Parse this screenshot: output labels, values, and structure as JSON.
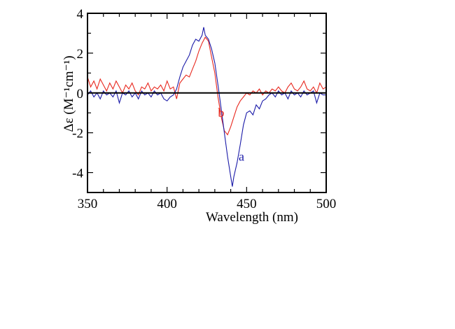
{
  "chart_data": {
    "type": "line",
    "title": "",
    "xlabel": "Wavelength (nm)",
    "ylabel": "Δε (M⁻¹cm⁻¹)",
    "ylabel_parts": {
      "base": "Δε (M",
      "sup1": "-1",
      "mid": "cm",
      "sup2": "-1",
      "end": ")"
    },
    "xlim": [
      350,
      500
    ],
    "ylim": [
      -5,
      4
    ],
    "xticks": [
      350,
      400,
      450,
      500
    ],
    "xtick_labels": [
      "350",
      "400",
      "450",
      "500"
    ],
    "yticks": [
      -4,
      -2,
      0,
      2,
      4
    ],
    "ytick_labels": [
      "-4",
      "-2",
      "0",
      "2",
      "4"
    ],
    "grid": false,
    "zero_line": true,
    "series": [
      {
        "name": "a",
        "color": "#1a1aa8",
        "label_pos": [
          445,
          -3.4
        ],
        "x": [
          350,
          352,
          354,
          356,
          358,
          360,
          362,
          364,
          366,
          368,
          370,
          372,
          374,
          376,
          378,
          380,
          382,
          384,
          386,
          388,
          390,
          392,
          394,
          396,
          398,
          400,
          402,
          404,
          406,
          408,
          410,
          412,
          414,
          416,
          418,
          420,
          422,
          423,
          424,
          426,
          428,
          430,
          432,
          434,
          436,
          438,
          440,
          441,
          442,
          444,
          446,
          448,
          450,
          452,
          454,
          456,
          458,
          460,
          462,
          464,
          466,
          468,
          470,
          472,
          474,
          476,
          478,
          480,
          482,
          484,
          486,
          488,
          490,
          492,
          494,
          496,
          498,
          500
        ],
        "y": [
          -0.1,
          0.1,
          -0.2,
          0.0,
          -0.3,
          0.1,
          -0.1,
          0.0,
          -0.2,
          0.1,
          -0.5,
          0.0,
          -0.1,
          0.1,
          -0.2,
          0.0,
          -0.3,
          0.1,
          -0.1,
          0.0,
          -0.2,
          0.1,
          -0.1,
          0.0,
          -0.3,
          -0.4,
          -0.2,
          -0.1,
          0.2,
          0.8,
          1.3,
          1.6,
          1.9,
          2.4,
          2.7,
          2.6,
          2.9,
          3.3,
          2.9,
          2.7,
          2.2,
          1.5,
          0.4,
          -0.8,
          -2.0,
          -3.2,
          -4.2,
          -4.7,
          -4.2,
          -3.5,
          -2.6,
          -1.6,
          -1.0,
          -0.9,
          -1.1,
          -0.6,
          -0.8,
          -0.4,
          -0.3,
          -0.1,
          0.0,
          -0.2,
          0.1,
          -0.1,
          0.0,
          -0.3,
          0.1,
          -0.1,
          0.0,
          -0.2,
          0.1,
          -0.1,
          0.0,
          0.1,
          -0.5,
          0.0,
          -0.1,
          -0.1
        ]
      },
      {
        "name": "b",
        "color": "#e8281e",
        "label_pos": [
          432,
          -1.2
        ],
        "x": [
          350,
          352,
          354,
          356,
          358,
          360,
          362,
          364,
          366,
          368,
          370,
          372,
          374,
          376,
          378,
          380,
          382,
          384,
          386,
          388,
          390,
          392,
          394,
          396,
          398,
          400,
          402,
          404,
          406,
          408,
          410,
          412,
          414,
          416,
          418,
          420,
          422,
          424,
          426,
          428,
          430,
          432,
          434,
          436,
          438,
          440,
          442,
          444,
          446,
          448,
          450,
          452,
          454,
          456,
          458,
          460,
          462,
          464,
          466,
          468,
          470,
          472,
          474,
          476,
          478,
          480,
          482,
          484,
          486,
          488,
          490,
          492,
          494,
          496,
          498,
          500
        ],
        "y": [
          0.8,
          0.3,
          0.6,
          0.2,
          0.7,
          0.4,
          0.1,
          0.5,
          0.2,
          0.6,
          0.3,
          0.0,
          0.4,
          0.2,
          0.5,
          0.1,
          -0.1,
          0.3,
          0.2,
          0.5,
          0.1,
          0.3,
          0.2,
          0.4,
          0.1,
          0.6,
          0.2,
          0.3,
          -0.3,
          0.5,
          0.7,
          0.9,
          0.8,
          1.2,
          1.6,
          2.1,
          2.5,
          2.8,
          2.6,
          1.8,
          1.0,
          -0.2,
          -1.2,
          -1.9,
          -2.1,
          -1.7,
          -1.2,
          -0.7,
          -0.4,
          -0.2,
          0.0,
          -0.1,
          0.1,
          0.0,
          0.2,
          -0.1,
          0.1,
          0.0,
          0.2,
          0.1,
          0.3,
          0.1,
          0.0,
          0.3,
          0.5,
          0.2,
          0.1,
          0.3,
          0.6,
          0.2,
          0.1,
          0.3,
          0.0,
          0.5,
          0.2,
          0.3
        ]
      }
    ]
  }
}
